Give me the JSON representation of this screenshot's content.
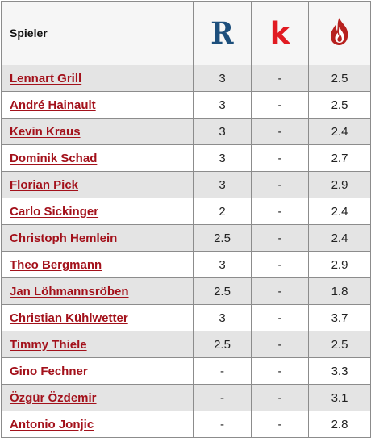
{
  "header": {
    "player_label": "Spieler",
    "icons": [
      {
        "name": "r-rating-icon",
        "glyph": "R",
        "color": "#1d4f7c"
      },
      {
        "name": "k-rating-icon",
        "glyph": "k",
        "color": "#e11b22"
      },
      {
        "name": "flame-rating-icon",
        "color": "#b7211f"
      }
    ]
  },
  "rows": [
    {
      "name": "Lennart Grill",
      "r": "3",
      "k": "-",
      "f": "2.5"
    },
    {
      "name": "André Hainault",
      "r": "3",
      "k": "-",
      "f": "2.5"
    },
    {
      "name": "Kevin Kraus",
      "r": "3",
      "k": "-",
      "f": "2.4"
    },
    {
      "name": "Dominik Schad",
      "r": "3",
      "k": "-",
      "f": "2.7"
    },
    {
      "name": "Florian Pick",
      "r": "3",
      "k": "-",
      "f": "2.9"
    },
    {
      "name": "Carlo Sickinger",
      "r": "2",
      "k": "-",
      "f": "2.4"
    },
    {
      "name": "Christoph Hemlein",
      "r": "2.5",
      "k": "-",
      "f": "2.4"
    },
    {
      "name": "Theo Bergmann",
      "r": "3",
      "k": "-",
      "f": "2.9"
    },
    {
      "name": "Jan Löhmannsröben",
      "r": "2.5",
      "k": "-",
      "f": "1.8"
    },
    {
      "name": "Christian Kühlwetter",
      "r": "3",
      "k": "-",
      "f": "3.7"
    },
    {
      "name": "Timmy Thiele",
      "r": "2.5",
      "k": "-",
      "f": "2.5"
    },
    {
      "name": "Gino Fechner",
      "r": "-",
      "k": "-",
      "f": "3.3"
    },
    {
      "name": "Özgür Özdemir",
      "r": "-",
      "k": "-",
      "f": "3.1"
    },
    {
      "name": "Antonio Jonjic",
      "r": "-",
      "k": "-",
      "f": "2.8"
    }
  ],
  "colors": {
    "link": "#a3111b",
    "row_shaded": "#e4e4e4",
    "border": "#8c8c8c"
  }
}
